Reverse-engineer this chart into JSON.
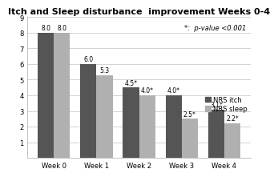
{
  "title": "Itch and Sleep disturbance  improvement Weeks 0-4",
  "categories": [
    "Week 0",
    "Week 1",
    "Week 2",
    "Week 3",
    "Week 4"
  ],
  "nrs_itch": [
    8.0,
    6.0,
    4.5,
    4.0,
    3.1
  ],
  "nrs_sleep": [
    8.0,
    5.3,
    4.0,
    2.5,
    2.2
  ],
  "itch_labels": [
    "8.0",
    "6.0",
    "4.5*",
    "4.0*",
    "3.1*"
  ],
  "sleep_labels": [
    "8.0",
    "5.3",
    "4.0*",
    "2.5*",
    "2.2*"
  ],
  "color_itch": "#555555",
  "color_sleep": "#b0b0b0",
  "ylim": [
    0,
    9
  ],
  "yticks": [
    1,
    2,
    3,
    4,
    5,
    6,
    7,
    8,
    9
  ],
  "annotation": "*:  p-value <0.001",
  "legend_itch": "NRS itch",
  "legend_sleep": "NRS sleep",
  "bar_width": 0.38,
  "title_fontsize": 8,
  "tick_fontsize": 6,
  "label_fontsize": 5.5,
  "legend_fontsize": 6,
  "annotation_fontsize": 6
}
